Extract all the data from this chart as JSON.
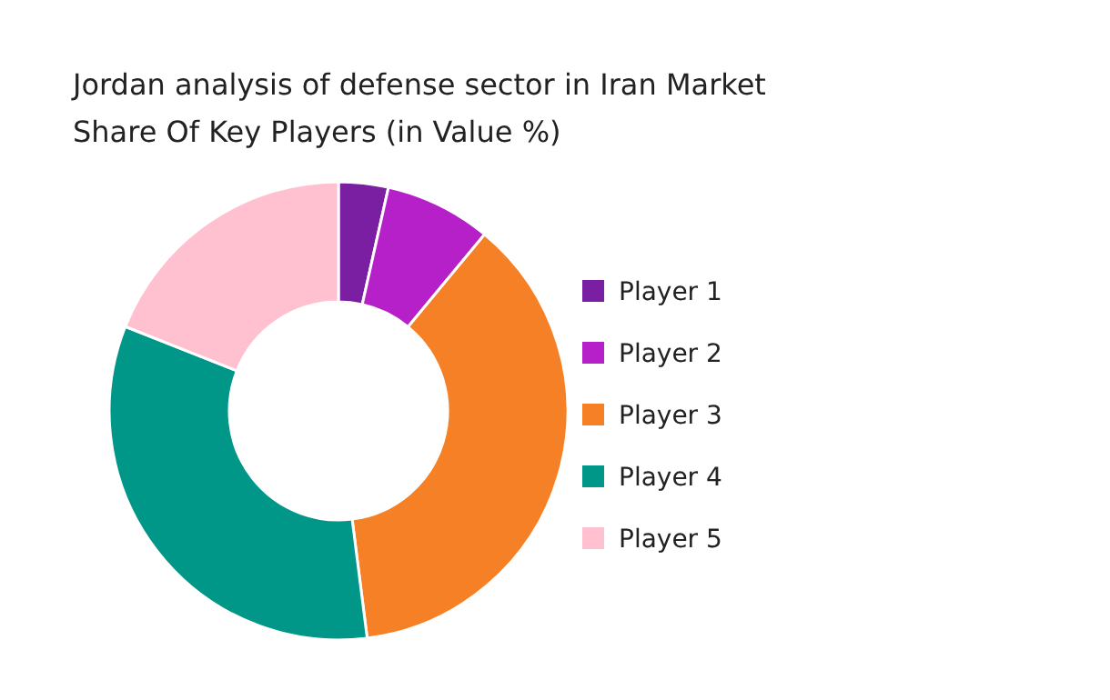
{
  "chart_data": {
    "type": "donut",
    "title": "Jordan analysis of defense sector in Iran Market Share Of Key Players (in Value %)",
    "categories": [
      "Player 1",
      "Player 2",
      "Player 3",
      "Player 4",
      "Player 5"
    ],
    "values": [
      3.5,
      7.5,
      37,
      33,
      19
    ],
    "colors": [
      "#7b1fa2",
      "#b620c8",
      "#f58025",
      "#009688",
      "#ffc0cf"
    ],
    "legend": "right"
  }
}
